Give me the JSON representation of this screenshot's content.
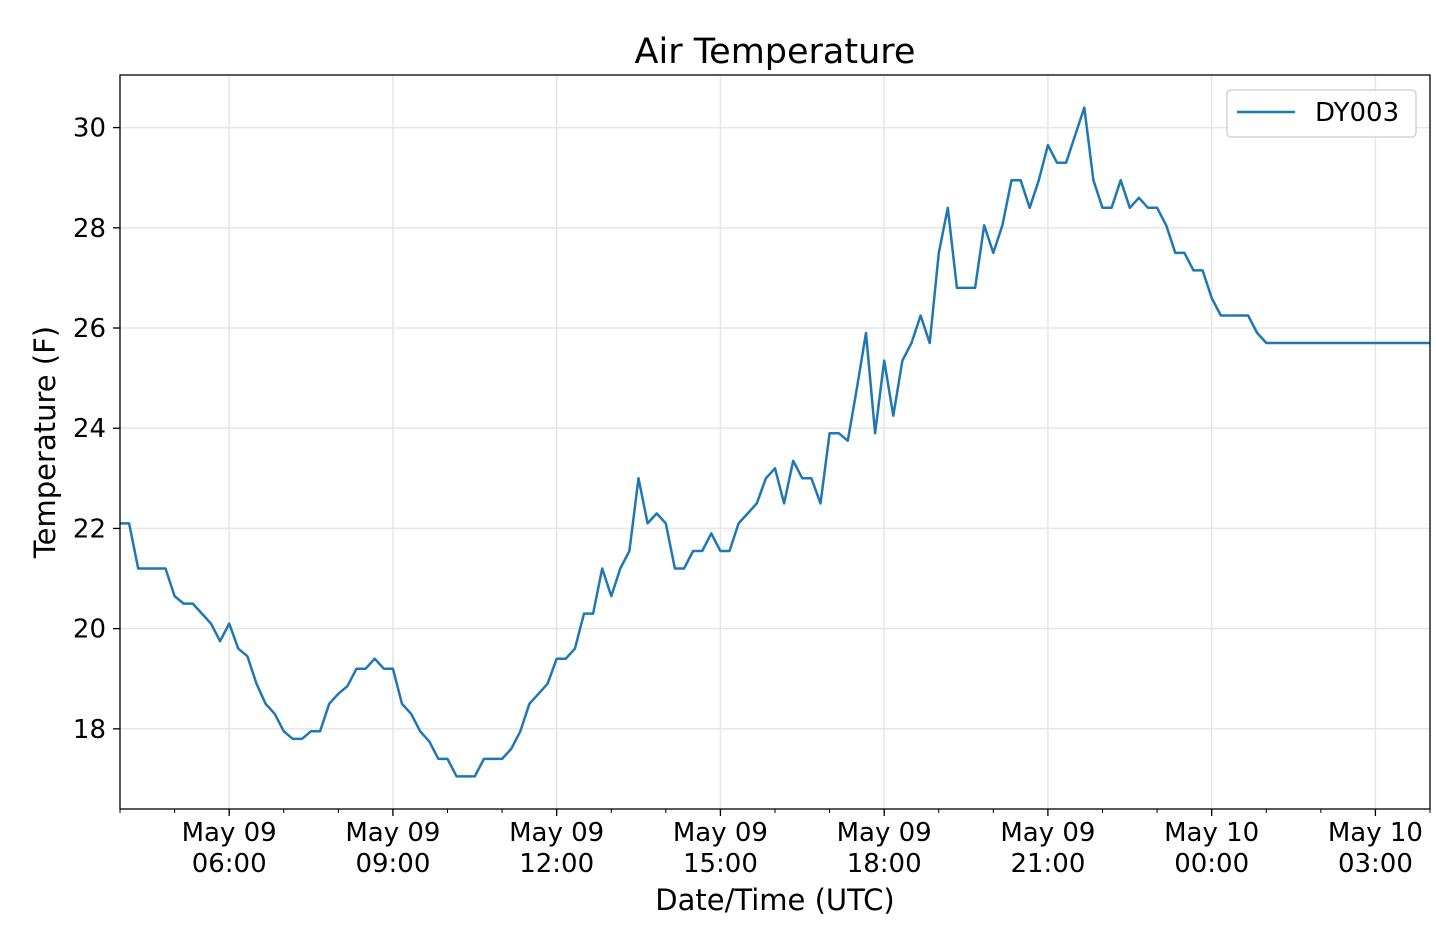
{
  "chart_data": {
    "type": "line",
    "title": "Air Temperature",
    "xlabel": "Date/Time (UTC)",
    "ylabel": "Temperature (F)",
    "x_units": "hours since May 09 00:00 UTC",
    "x_start": 4,
    "interval_minutes": 10,
    "xlim": [
      4,
      28
    ],
    "ylim": [
      16.4,
      31.05
    ],
    "grid": true,
    "legend_position": "top-right",
    "yticks": [
      18,
      20,
      22,
      24,
      26,
      28,
      30
    ],
    "xticks": [
      {
        "value": 6,
        "label": [
          "May 09",
          "06:00"
        ]
      },
      {
        "value": 9,
        "label": [
          "May 09",
          "09:00"
        ]
      },
      {
        "value": 12,
        "label": [
          "May 09",
          "12:00"
        ]
      },
      {
        "value": 15,
        "label": [
          "May 09",
          "15:00"
        ]
      },
      {
        "value": 18,
        "label": [
          "May 09",
          "18:00"
        ]
      },
      {
        "value": 21,
        "label": [
          "May 09",
          "21:00"
        ]
      },
      {
        "value": 24,
        "label": [
          "May 10",
          "00:00"
        ]
      },
      {
        "value": 27,
        "label": [
          "May 10",
          "03:00"
        ]
      }
    ],
    "series": [
      {
        "name": "DY003",
        "color": "#1f77b4",
        "values": [
          22.1,
          22.1,
          21.2,
          21.2,
          21.2,
          21.2,
          20.65,
          20.5,
          20.5,
          20.3,
          20.1,
          19.75,
          20.1,
          19.6,
          19.45,
          18.9,
          18.5,
          18.3,
          17.95,
          17.8,
          17.8,
          17.95,
          17.95,
          18.5,
          18.7,
          18.85,
          19.2,
          19.2,
          19.4,
          19.2,
          19.2,
          18.5,
          18.3,
          17.95,
          17.75,
          17.4,
          17.4,
          17.05,
          17.05,
          17.05,
          17.4,
          17.4,
          17.4,
          17.6,
          17.95,
          18.5,
          18.7,
          18.9,
          19.4,
          19.4,
          19.6,
          20.3,
          20.3,
          21.2,
          20.65,
          21.2,
          21.55,
          23.0,
          22.1,
          22.3,
          22.1,
          21.2,
          21.2,
          21.55,
          21.55,
          21.9,
          21.55,
          21.55,
          22.1,
          22.3,
          22.5,
          23.0,
          23.2,
          22.5,
          23.35,
          23.0,
          23.0,
          22.5,
          23.9,
          23.9,
          23.75,
          24.8,
          25.9,
          23.9,
          25.35,
          24.25,
          25.35,
          25.7,
          26.25,
          25.7,
          27.5,
          28.4,
          26.8,
          26.8,
          26.8,
          28.05,
          27.5,
          28.05,
          28.95,
          28.95,
          28.4,
          28.95,
          29.65,
          29.3,
          29.3,
          29.85,
          30.4,
          28.95,
          28.4,
          28.4,
          28.95,
          28.4,
          28.6,
          28.4,
          28.4,
          28.05,
          27.5,
          27.5,
          27.15,
          27.15,
          26.6,
          26.25,
          26.25,
          26.25,
          26.25,
          25.9,
          25.7,
          25.7,
          25.7,
          25.7,
          25.7,
          25.7,
          25.7,
          25.7,
          25.7,
          25.7,
          25.7,
          25.7,
          25.7,
          25.7,
          25.7,
          25.7,
          25.7,
          25.7,
          25.7,
          25.7
        ]
      }
    ]
  }
}
